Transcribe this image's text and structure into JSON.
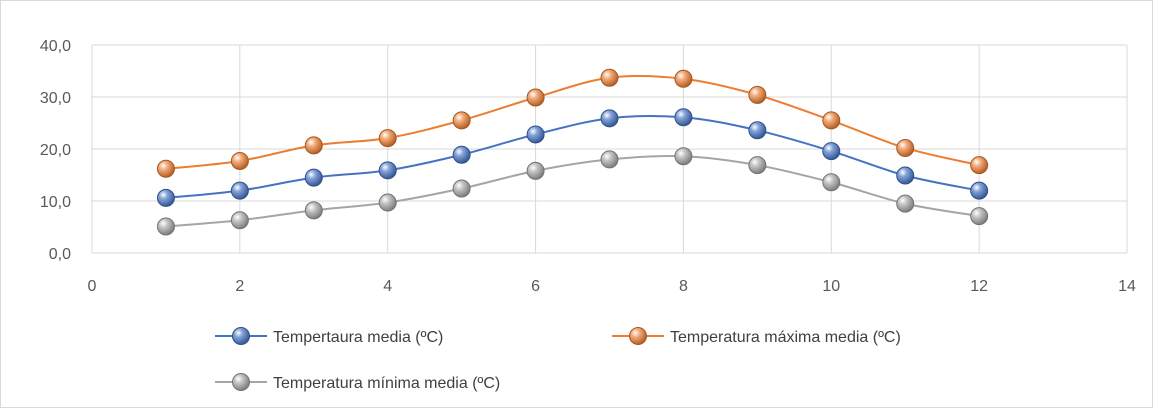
{
  "chart_data": {
    "type": "scatter",
    "title": "",
    "xlabel": "",
    "ylabel": "",
    "xlim": [
      0,
      14
    ],
    "ylim": [
      0,
      40
    ],
    "x_ticks": [
      0,
      2,
      4,
      6,
      8,
      10,
      12,
      14
    ],
    "y_ticks": [
      "0,0",
      "10,0",
      "20,0",
      "30,0",
      "40,0"
    ],
    "y_tick_values": [
      0,
      10,
      20,
      30,
      40
    ],
    "grid": true,
    "smooth_lines": true,
    "legend_position": "bottom",
    "x": [
      1,
      2,
      3,
      4,
      5,
      6,
      7,
      8,
      9,
      10,
      11,
      12
    ],
    "series": [
      {
        "name": "Tempertaura media (ºC)",
        "color": "#4472c4",
        "values": [
          10.6,
          12.0,
          14.5,
          15.9,
          18.9,
          22.8,
          25.9,
          26.1,
          23.6,
          19.6,
          14.9,
          12.0
        ]
      },
      {
        "name": "Temperatura máxima media (ºC)",
        "color": "#ed7d31",
        "values": [
          16.2,
          17.7,
          20.7,
          22.1,
          25.5,
          29.9,
          33.7,
          33.5,
          30.4,
          25.5,
          20.2,
          16.9
        ]
      },
      {
        "name": "Temperatura mínima media (ºC)",
        "color": "#a5a5a5",
        "values": [
          5.1,
          6.3,
          8.2,
          9.7,
          12.4,
          15.8,
          18.0,
          18.6,
          16.9,
          13.6,
          9.5,
          7.1
        ]
      }
    ]
  }
}
